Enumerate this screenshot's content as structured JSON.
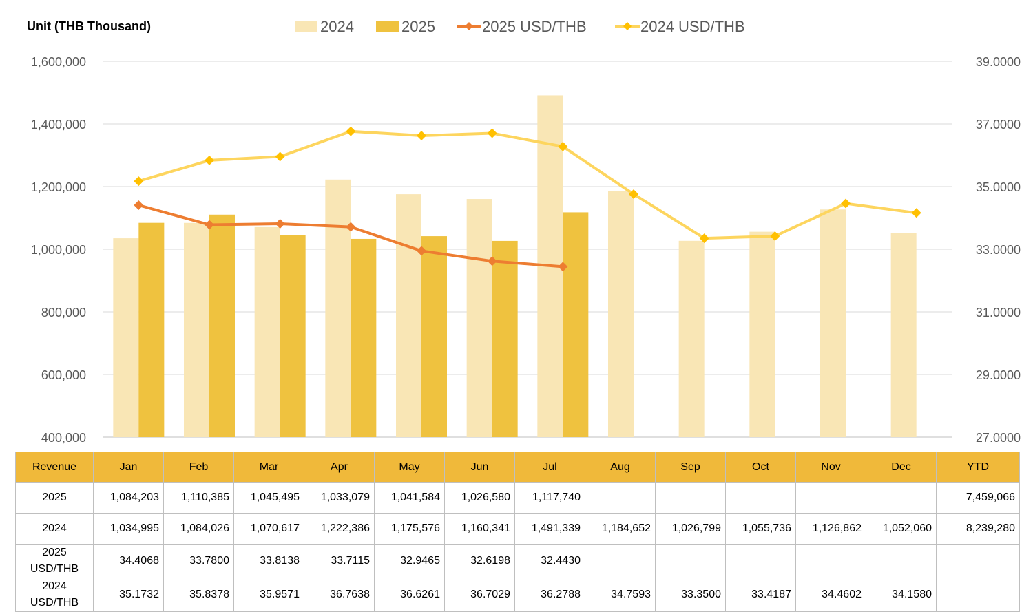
{
  "unit_label": "Unit (THB  Thousand)",
  "legend": [
    {
      "label": "2024",
      "kind": "bar",
      "color": "#f9e6b5"
    },
    {
      "label": "2025",
      "kind": "bar",
      "color": "#efc23f"
    },
    {
      "label": "2025 USD/THB",
      "kind": "line",
      "color": "#ed7d31"
    },
    {
      "label": "2024 USD/THB",
      "kind": "line",
      "color": "#fdd55e"
    }
  ],
  "chart_data": {
    "type": "bar",
    "categories": [
      "Jan",
      "Feb",
      "Mar",
      "Apr",
      "May",
      "Jun",
      "Jul",
      "Aug",
      "Sep",
      "Oct",
      "Nov",
      "Dec"
    ],
    "series": [
      {
        "name": "2024",
        "type": "bar",
        "axis": "left",
        "color": "#f9e6b5",
        "values": [
          1034995,
          1084026,
          1070617,
          1222386,
          1175576,
          1160341,
          1491339,
          1184652,
          1026799,
          1055736,
          1126862,
          1052060
        ]
      },
      {
        "name": "2025",
        "type": "bar",
        "axis": "left",
        "color": "#efc23f",
        "values": [
          1084203,
          1110385,
          1045495,
          1033079,
          1041584,
          1026580,
          1117740,
          null,
          null,
          null,
          null,
          null
        ]
      },
      {
        "name": "2025 USD/THB",
        "type": "line",
        "axis": "right",
        "color": "#ed7d31",
        "values": [
          34.4068,
          33.78,
          33.8138,
          33.7115,
          32.9465,
          32.6198,
          32.443,
          null,
          null,
          null,
          null,
          null
        ]
      },
      {
        "name": "2024 USD/THB",
        "type": "line",
        "axis": "right",
        "color": "#fdd55e",
        "values": [
          35.1732,
          35.8378,
          35.9571,
          36.7638,
          36.6261,
          36.7029,
          36.2788,
          34.7593,
          33.35,
          33.4187,
          34.4602,
          34.158
        ]
      }
    ],
    "y_left": {
      "min": 400000,
      "max": 1600000,
      "step": 200000,
      "ticks": [
        "400,000",
        "600,000",
        "800,000",
        "1,000,000",
        "1,200,000",
        "1,400,000",
        "1,600,000"
      ]
    },
    "y_right": {
      "min": 27,
      "max": 39,
      "step": 2,
      "ticks": [
        "27.0000",
        "29.0000",
        "31.0000",
        "33.0000",
        "35.0000",
        "37.0000",
        "39.0000"
      ]
    },
    "grid": true,
    "legend_position": "top"
  },
  "table": {
    "headers": [
      "Revenue",
      "Jan",
      "Feb",
      "Mar",
      "Apr",
      "May",
      "Jun",
      "Jul",
      "Aug",
      "Sep",
      "Oct",
      "Nov",
      "Dec",
      "YTD"
    ],
    "rows": [
      {
        "label": [
          "2025"
        ],
        "cells": [
          "1,084,203",
          "1,110,385",
          "1,045,495",
          "1,033,079",
          "1,041,584",
          "1,026,580",
          "1,117,740",
          "",
          "",
          "",
          "",
          "",
          "7,459,066"
        ]
      },
      {
        "label": [
          "2024"
        ],
        "cells": [
          "1,034,995",
          "1,084,026",
          "1,070,617",
          "1,222,386",
          "1,175,576",
          "1,160,341",
          "1,491,339",
          "1,184,652",
          "1,026,799",
          "1,055,736",
          "1,126,862",
          "1,052,060",
          "8,239,280"
        ]
      },
      {
        "label": [
          "2025",
          "USD/THB"
        ],
        "cells": [
          "34.4068",
          "33.7800",
          "33.8138",
          "33.7115",
          "32.9465",
          "32.6198",
          "32.4430",
          "",
          "",
          "",
          "",
          "",
          ""
        ]
      },
      {
        "label": [
          "2024",
          "USD/THB"
        ],
        "cells": [
          "35.1732",
          "35.8378",
          "35.9571",
          "36.7638",
          "36.6261",
          "36.7029",
          "36.2788",
          "34.7593",
          "33.3500",
          "33.4187",
          "34.4602",
          "34.1580",
          ""
        ]
      }
    ]
  }
}
